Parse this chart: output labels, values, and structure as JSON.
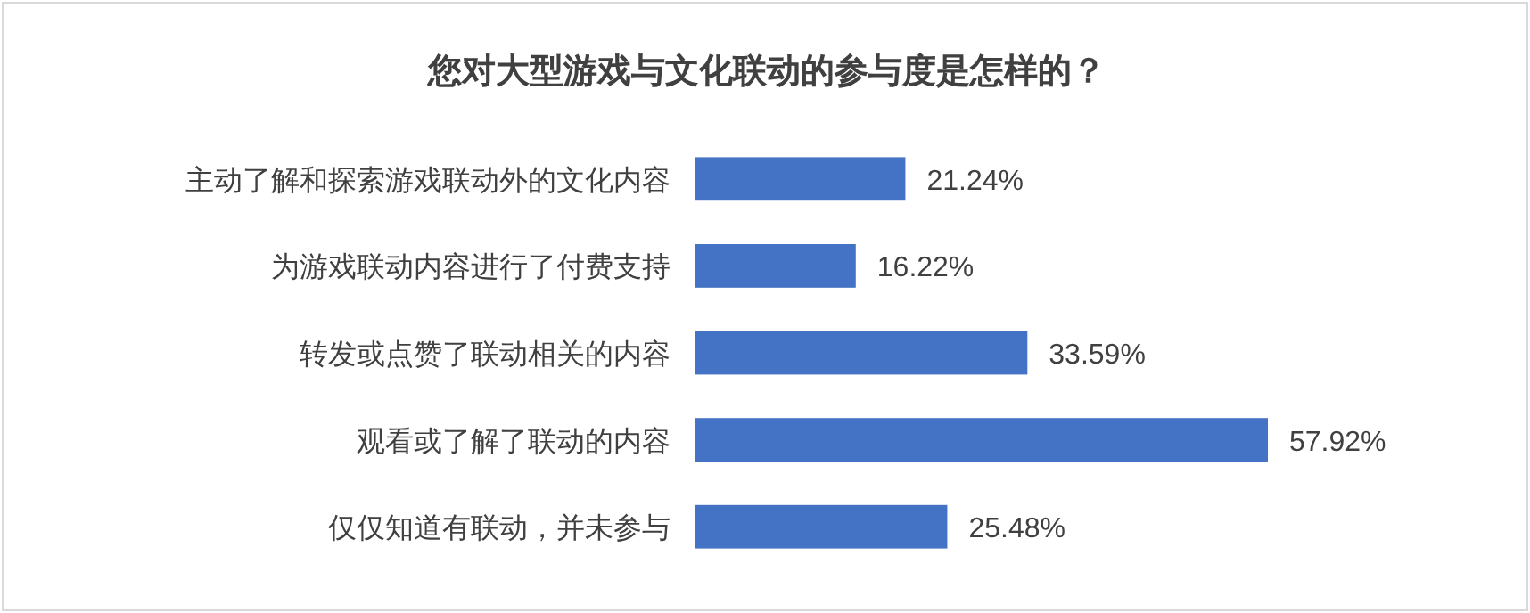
{
  "chart_data": {
    "type": "bar",
    "orientation": "horizontal",
    "title": "您对大型游戏与文化联动的参与度是怎样的？",
    "categories": [
      "主动了解和探索游戏联动外的文化内容",
      "为游戏联动内容进行了付费支持",
      "转发或点赞了联动相关的内容",
      "观看或了解了联动的内容",
      "仅仅知道有联动，并未参与"
    ],
    "values": [
      21.24,
      16.22,
      33.59,
      57.92,
      25.48
    ],
    "value_labels": [
      "21.24%",
      "16.22%",
      "33.59%",
      "57.92%",
      "25.48%"
    ],
    "color": "#4472c4"
  }
}
